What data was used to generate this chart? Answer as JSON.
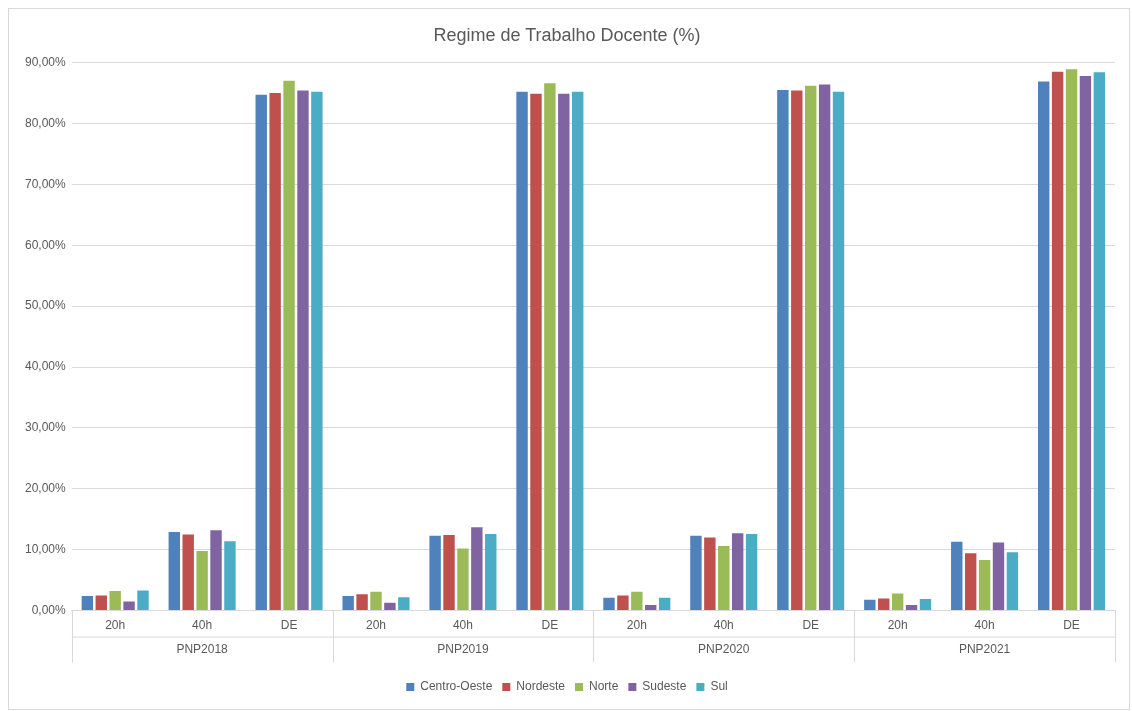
{
  "chart_data": {
    "type": "bar",
    "title": "Regime de Trabalho Docente (%)",
    "categories": [
      "20h",
      "40h",
      "DE",
      "20h",
      "40h",
      "DE",
      "20h",
      "40h",
      "DE",
      "20h",
      "40h",
      "DE"
    ],
    "annotations": [
      "PNP2018",
      "PNP2019",
      "PNP2020",
      "PNP2021"
    ],
    "series": [
      {
        "name": "Centro-Oeste",
        "color": "#4f81bd",
        "values": [
          2.4,
          12.9,
          84.7,
          2.4,
          12.3,
          85.2,
          2.1,
          12.3,
          85.5,
          1.8,
          11.3,
          86.9
        ]
      },
      {
        "name": "Nordeste",
        "color": "#c0504d",
        "values": [
          2.5,
          12.5,
          85.0,
          2.7,
          12.4,
          84.9,
          2.5,
          12.0,
          85.4,
          2.0,
          9.4,
          88.5
        ]
      },
      {
        "name": "Norte",
        "color": "#9bbb59",
        "values": [
          3.2,
          9.8,
          87.0,
          3.1,
          10.2,
          86.6,
          3.1,
          10.6,
          86.2,
          2.8,
          8.3,
          88.9
        ]
      },
      {
        "name": "Sudeste",
        "color": "#8064a2",
        "values": [
          1.5,
          13.2,
          85.4,
          1.3,
          13.7,
          84.9,
          0.9,
          12.7,
          86.4,
          0.9,
          11.2,
          87.8
        ]
      },
      {
        "name": "Sul",
        "color": "#4bacc6",
        "values": [
          3.3,
          11.4,
          85.2,
          2.2,
          12.6,
          85.2,
          2.1,
          12.6,
          85.2,
          1.9,
          9.6,
          88.4
        ]
      }
    ],
    "ylim": [
      0,
      90
    ],
    "yticks": [
      {
        "value": 0,
        "label": "0,00%"
      },
      {
        "value": 10,
        "label": "10,00%"
      },
      {
        "value": 20,
        "label": "20,00%"
      },
      {
        "value": 30,
        "label": "30,00%"
      },
      {
        "value": 40,
        "label": "40,00%"
      },
      {
        "value": 50,
        "label": "50,00%"
      },
      {
        "value": 60,
        "label": "60,00%"
      },
      {
        "value": 70,
        "label": "70,00%"
      },
      {
        "value": 80,
        "label": "80,00%"
      },
      {
        "value": 90,
        "label": "90,00%"
      }
    ],
    "grid": "y",
    "legend": "bottom"
  }
}
